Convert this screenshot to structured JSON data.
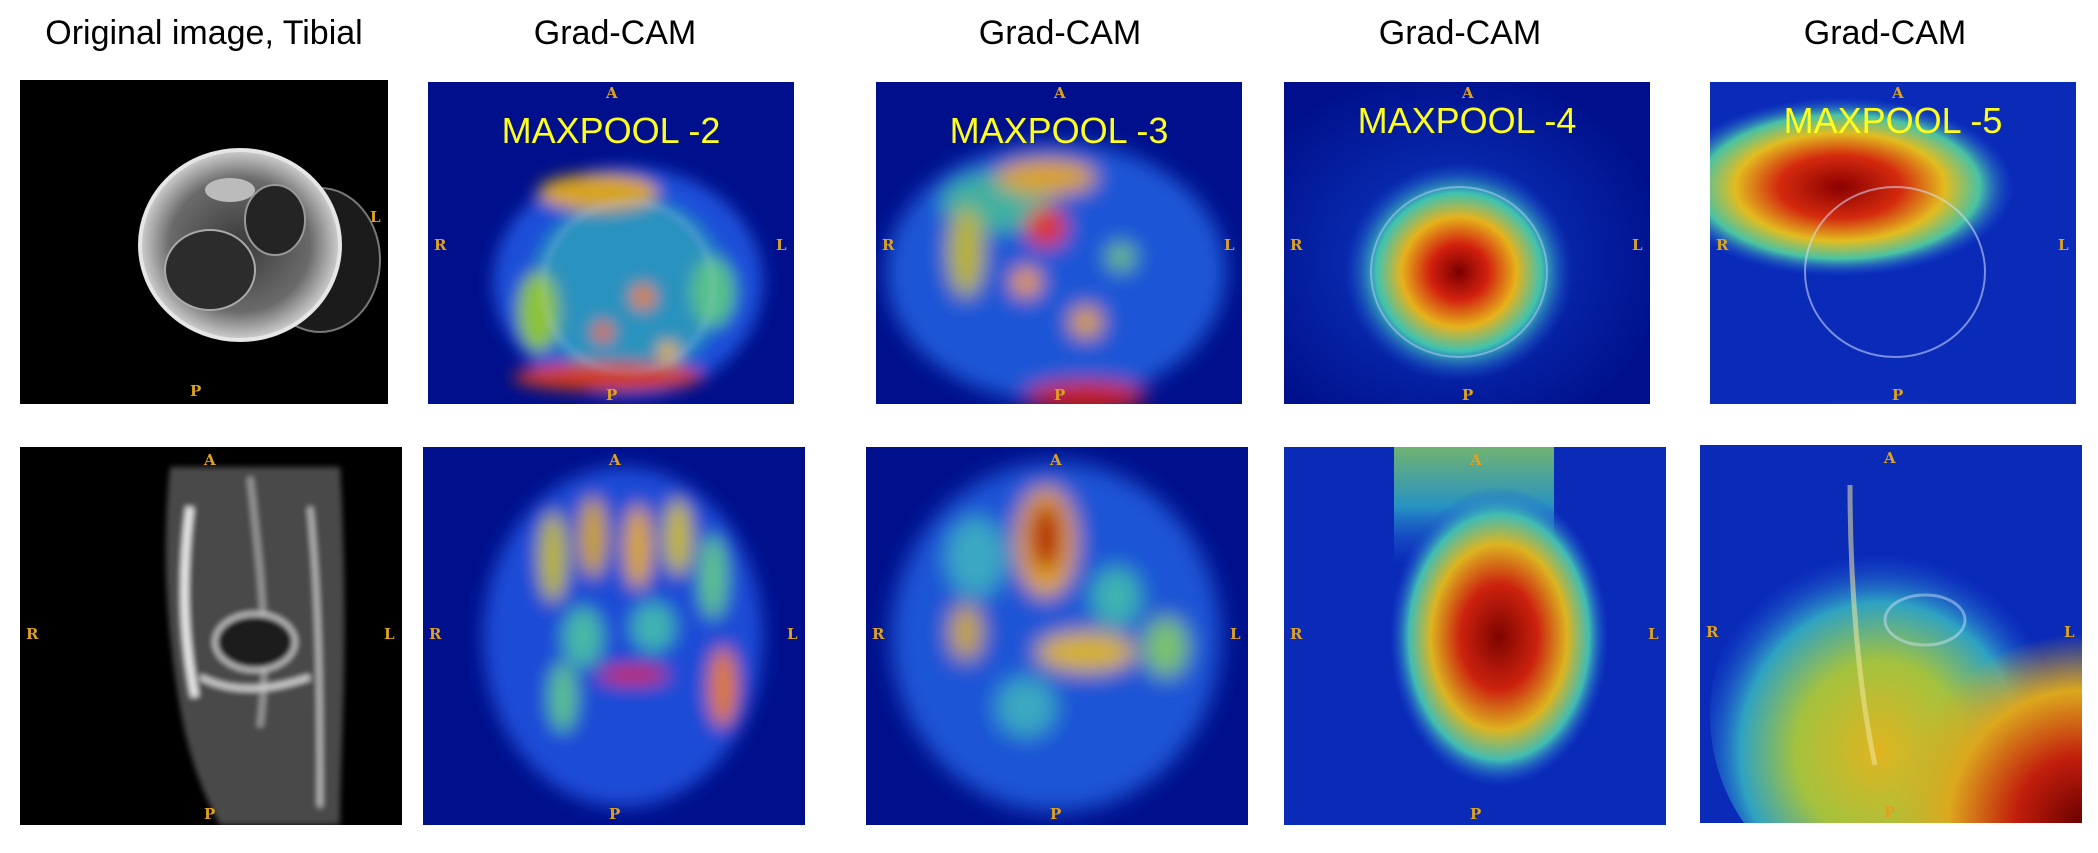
{
  "column_titles": [
    "Original image, Tibial",
    "Grad-CAM",
    "Grad-CAM",
    "Grad-CAM",
    "Grad-CAM"
  ],
  "layer_labels": [
    "MAXPOOL -2",
    "MAXPOOL -3",
    "MAXPOOL -4",
    "MAXPOOL -5"
  ],
  "orientation": {
    "anterior": "A",
    "posterior": "P",
    "right": "R",
    "left": "L"
  },
  "colors": {
    "label_yellow": "#ffff1e",
    "orientation_orange": "#e0a21c",
    "heatmap_base": "#00108c"
  }
}
